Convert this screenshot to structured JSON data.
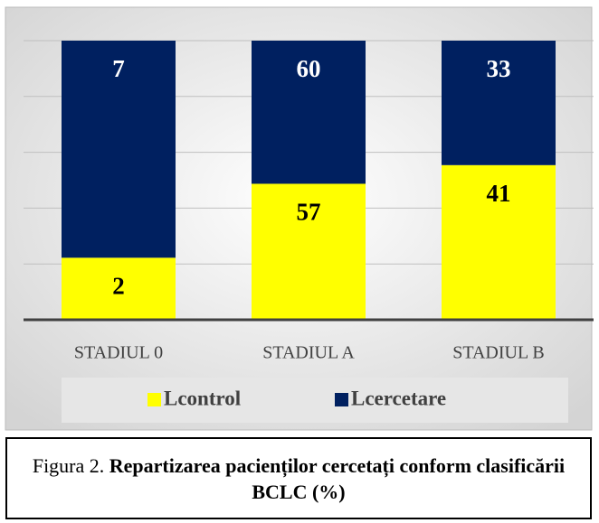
{
  "chart_data": {
    "type": "stacked_percent_bar",
    "categories": [
      "STADIUL 0",
      "STADIUL A",
      "STADIUL B"
    ],
    "series": [
      {
        "name": "Lcontrol",
        "color": "#ffff00",
        "label_color": "#000000",
        "values": [
          2,
          57,
          41
        ]
      },
      {
        "name": "Lcercetare",
        "color": "#002060",
        "label_color": "#ffffff",
        "values": [
          7,
          60,
          33
        ]
      }
    ],
    "ylim": [
      0,
      100
    ],
    "yticks": [
      0,
      20,
      40,
      60,
      80,
      100
    ],
    "show_ytick_labels": false,
    "grid": true,
    "legend": "bottom"
  },
  "caption": {
    "prefix": "Figura 2.",
    "title": "Repartizarea pacienților cercetați conform clasificării BCLC (%)"
  }
}
